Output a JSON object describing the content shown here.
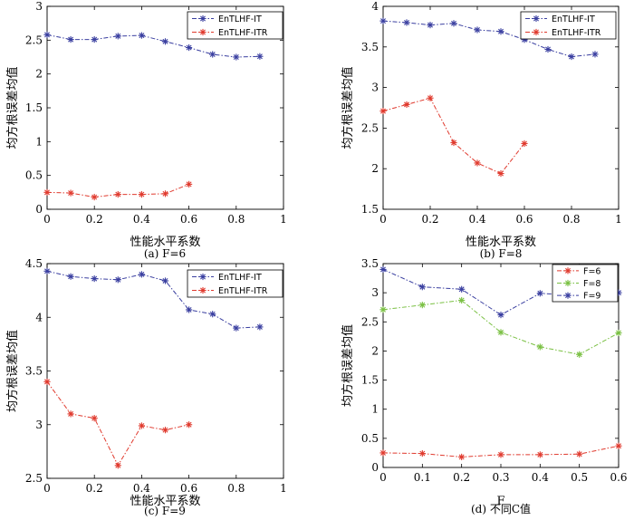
{
  "colors": {
    "blue": "#3a3fa0",
    "red": "#e03a2e",
    "green": "#7ac043",
    "axis": "#000000"
  },
  "chart_data": [
    {
      "type": "line",
      "caption": "(a) F=6",
      "xlabel": "性能水平系数",
      "ylabel": "均方根误差均值",
      "xlim": [
        0,
        1
      ],
      "ylim": [
        0,
        3
      ],
      "xticks": [
        "0",
        "0.2",
        "0.4",
        "0.6",
        "0.8",
        "1"
      ],
      "xtick_values": [
        0,
        0.2,
        0.4,
        0.6,
        0.8,
        1
      ],
      "yticks": [
        "0",
        "0.5",
        "1",
        "1.5",
        "2",
        "2.5",
        "3"
      ],
      "ytick_values": [
        0,
        0.5,
        1,
        1.5,
        2,
        2.5,
        3
      ],
      "legend_position": "top-right",
      "series": [
        {
          "name": "EnTLHF-IT",
          "color": "#3a3fa0",
          "x": [
            0,
            0.1,
            0.2,
            0.3,
            0.4,
            0.5,
            0.6,
            0.7,
            0.8,
            0.9
          ],
          "y": [
            2.58,
            2.51,
            2.51,
            2.56,
            2.57,
            2.48,
            2.39,
            2.29,
            2.25,
            2.26
          ]
        },
        {
          "name": "EnTLHF-ITR",
          "color": "#e03a2e",
          "x": [
            0,
            0.1,
            0.2,
            0.3,
            0.4,
            0.5,
            0.6
          ],
          "y": [
            0.25,
            0.24,
            0.18,
            0.22,
            0.22,
            0.23,
            0.37
          ]
        }
      ]
    },
    {
      "type": "line",
      "caption": "(b) F=8",
      "xlabel": "性能水平系数",
      "ylabel": "均方根误差均值",
      "xlim": [
        0,
        1
      ],
      "ylim": [
        1.5,
        4
      ],
      "xticks": [
        "0",
        "0.2",
        "0.4",
        "0.6",
        "0.8",
        "1"
      ],
      "xtick_values": [
        0,
        0.2,
        0.4,
        0.6,
        0.8,
        1
      ],
      "yticks": [
        "1.5",
        "2",
        "2.5",
        "3",
        "3.5",
        "4"
      ],
      "ytick_values": [
        1.5,
        2,
        2.5,
        3,
        3.5,
        4
      ],
      "legend_position": "top-right",
      "series": [
        {
          "name": "EnTLHF-IT",
          "color": "#3a3fa0",
          "x": [
            0,
            0.1,
            0.2,
            0.3,
            0.4,
            0.5,
            0.6,
            0.7,
            0.8,
            0.9
          ],
          "y": [
            3.82,
            3.8,
            3.77,
            3.79,
            3.71,
            3.69,
            3.59,
            3.47,
            3.38,
            3.41
          ]
        },
        {
          "name": "EnTLHF-ITR",
          "color": "#e03a2e",
          "x": [
            0,
            0.1,
            0.2,
            0.3,
            0.4,
            0.5,
            0.6
          ],
          "y": [
            2.71,
            2.79,
            2.87,
            2.32,
            2.07,
            1.94,
            2.31
          ]
        }
      ]
    },
    {
      "type": "line",
      "caption": "(c) F=9",
      "xlabel": "性能水平系数",
      "ylabel": "均方根误差均值",
      "xlim": [
        0,
        1
      ],
      "ylim": [
        2.5,
        4.5
      ],
      "xticks": [
        "0",
        "0.2",
        "0.4",
        "0.6",
        "0.8",
        "1"
      ],
      "xtick_values": [
        0,
        0.2,
        0.4,
        0.6,
        0.8,
        1
      ],
      "yticks": [
        "2.5",
        "3",
        "3.5",
        "4",
        "4.5"
      ],
      "ytick_values": [
        2.5,
        3,
        3.5,
        4,
        4.5
      ],
      "legend_position": "top-right",
      "series": [
        {
          "name": "EnTLHF-IT",
          "color": "#3a3fa0",
          "x": [
            0,
            0.1,
            0.2,
            0.3,
            0.4,
            0.5,
            0.6,
            0.7,
            0.8,
            0.9
          ],
          "y": [
            4.43,
            4.38,
            4.36,
            4.35,
            4.4,
            4.34,
            4.07,
            4.03,
            3.9,
            3.91
          ]
        },
        {
          "name": "EnTLHF-ITR",
          "color": "#e03a2e",
          "x": [
            0,
            0.1,
            0.2,
            0.3,
            0.4,
            0.5,
            0.6
          ],
          "y": [
            3.4,
            3.1,
            3.06,
            2.62,
            2.99,
            2.95,
            3.0
          ]
        }
      ]
    },
    {
      "type": "line",
      "caption": "(d) 不同C值",
      "xlabel": "F",
      "ylabel": "均方根误差均值",
      "xlim": [
        0,
        0.6
      ],
      "ylim": [
        0,
        3.5
      ],
      "xticks": [
        "0",
        "0.1",
        "0.2",
        "0.3",
        "0.4",
        "0.5",
        "0.6"
      ],
      "xtick_values": [
        0,
        0.1,
        0.2,
        0.3,
        0.4,
        0.5,
        0.6
      ],
      "yticks": [
        "0",
        "0.5",
        "1",
        "1.5",
        "2",
        "2.5",
        "3",
        "3.5"
      ],
      "ytick_values": [
        0,
        0.5,
        1,
        1.5,
        2,
        2.5,
        3,
        3.5
      ],
      "legend_position": "top-right",
      "series": [
        {
          "name": "F=6",
          "color": "#e03a2e",
          "x": [
            0,
            0.1,
            0.2,
            0.3,
            0.4,
            0.5,
            0.6
          ],
          "y": [
            0.25,
            0.24,
            0.18,
            0.22,
            0.22,
            0.23,
            0.37
          ]
        },
        {
          "name": "F=8",
          "color": "#7ac043",
          "x": [
            0,
            0.1,
            0.2,
            0.3,
            0.4,
            0.5,
            0.6
          ],
          "y": [
            2.71,
            2.79,
            2.87,
            2.32,
            2.07,
            1.94,
            2.31
          ]
        },
        {
          "name": "F=9",
          "color": "#3a3fa0",
          "x": [
            0,
            0.1,
            0.2,
            0.3,
            0.4,
            0.5,
            0.6
          ],
          "y": [
            3.4,
            3.1,
            3.06,
            2.62,
            2.99,
            2.95,
            3.0
          ]
        }
      ]
    }
  ]
}
